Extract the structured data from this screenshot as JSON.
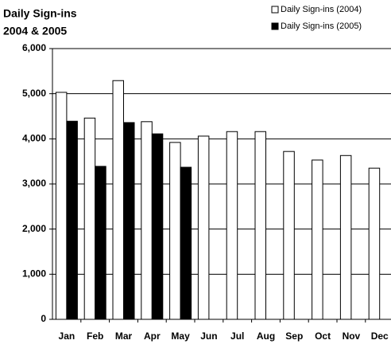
{
  "chart_data": {
    "type": "bar",
    "title": "Daily Sign-ins",
    "subtitle": "2004 & 2005",
    "categories": [
      "Jan",
      "Feb",
      "Mar",
      "Apr",
      "May",
      "Jun",
      "Jul",
      "Aug",
      "Sep",
      "Oct",
      "Nov",
      "Dec"
    ],
    "series": [
      {
        "name": "Daily Sign-ins (2004)",
        "color": "#ffffff",
        "values": [
          5030,
          4460,
          5290,
          4380,
          3920,
          4060,
          4160,
          4160,
          3720,
          3530,
          3630,
          3350
        ]
      },
      {
        "name": "Daily Sign-ins (2005)",
        "color": "#000000",
        "values": [
          4390,
          3390,
          4360,
          4110,
          3370,
          null,
          null,
          null,
          null,
          null,
          null,
          null
        ]
      }
    ],
    "ylim": [
      0,
      6000
    ],
    "yticks": [
      0,
      {
        "value": 1000,
        "label": "1,000"
      },
      {
        "value": 2000,
        "label": "2,000"
      },
      {
        "value": 3000,
        "label": "3,000"
      },
      {
        "value": 4000,
        "label": "4,000"
      },
      {
        "value": 5000,
        "label": "5,000"
      },
      {
        "value": 6000,
        "label": "6,000"
      }
    ],
    "grid": true,
    "legend": "top-right"
  }
}
